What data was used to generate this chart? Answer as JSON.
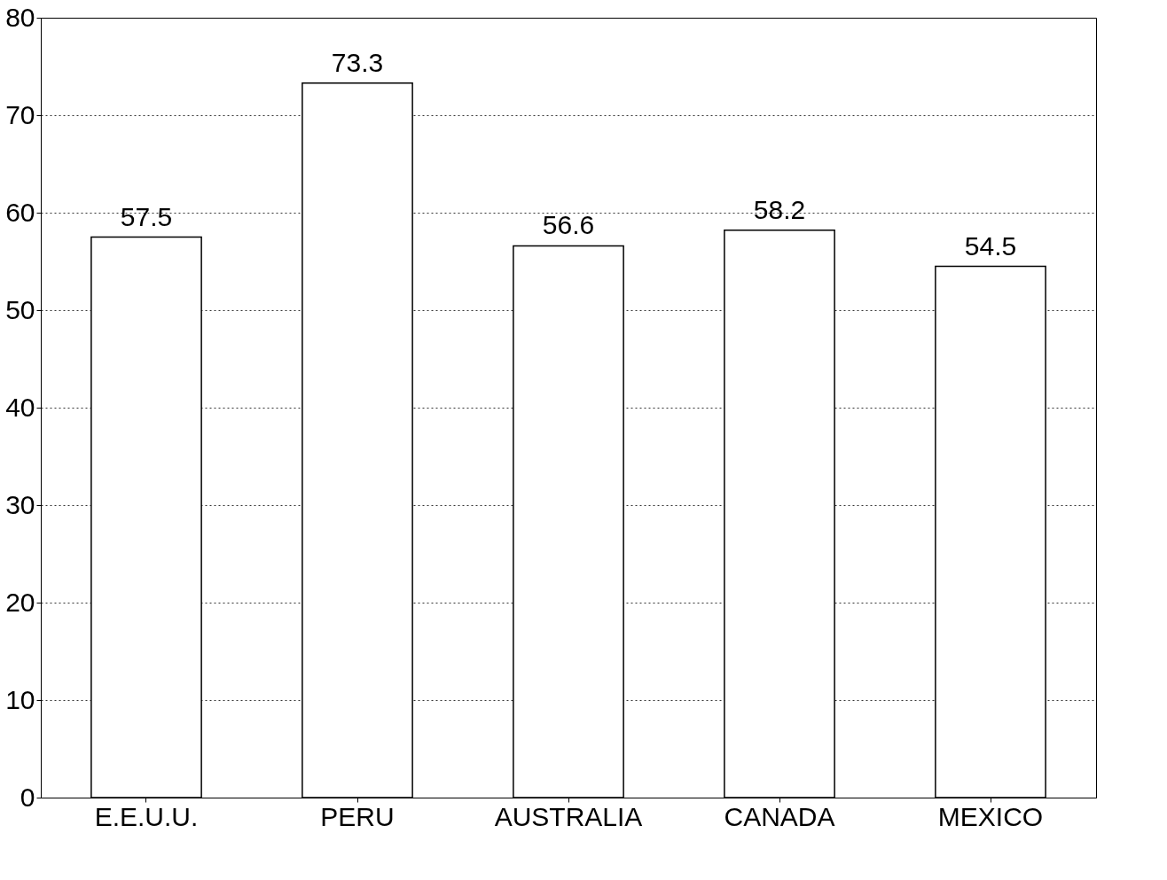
{
  "chart_data": {
    "type": "bar",
    "categories": [
      "E.E.U.U.",
      "PERU",
      "AUSTRALIA",
      "CANADA",
      "MEXICO"
    ],
    "values": [
      57.5,
      73.3,
      56.6,
      58.2,
      54.5
    ],
    "color": "#ffffff",
    "ylim": [
      0,
      80
    ],
    "yticks": [
      0,
      10,
      20,
      30,
      40,
      50,
      60,
      70,
      80
    ],
    "grid": "y",
    "data_labels": true
  }
}
